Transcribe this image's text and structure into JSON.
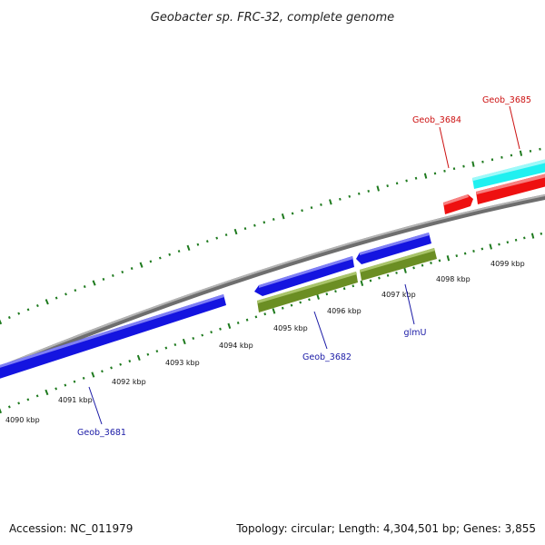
{
  "title": "Geobacter sp. FRC-32, complete genome",
  "footer": {
    "accession": "Accession: NC_011979",
    "stats": "Topology: circular; Length: 4,304,501 bp; Genes: 3,855"
  },
  "colors": {
    "backbone": "#8a8a8a",
    "tick": "#1e7a1e",
    "strand_plus_gene": "#1414e0",
    "strand_plus_gene_alt": "#20f0f0",
    "strand_minus_gene": "#ee1010",
    "cds_olive": "#6b8e23",
    "label_blue": "#1a1aa6",
    "label_red": "#cc1111"
  },
  "kbp_labels": [
    "4090 kbp",
    "4091 kbp",
    "4092 kbp",
    "4093 kbp",
    "4094 kbp",
    "4095 kbp",
    "4096 kbp",
    "4097 kbp",
    "4098 kbp",
    "4099 kbp"
  ],
  "genes": [
    {
      "name": "Geob_3681",
      "color": "blue",
      "strand": "+"
    },
    {
      "name": "Geob_3682",
      "color": "blue",
      "strand": "-"
    },
    {
      "name": "glmU",
      "color": "blue",
      "strand": "+"
    },
    {
      "name": "Geob_3684",
      "color": "red",
      "strand": "+"
    },
    {
      "name": "Geob_3685",
      "color": "red",
      "strand": "+"
    }
  ]
}
